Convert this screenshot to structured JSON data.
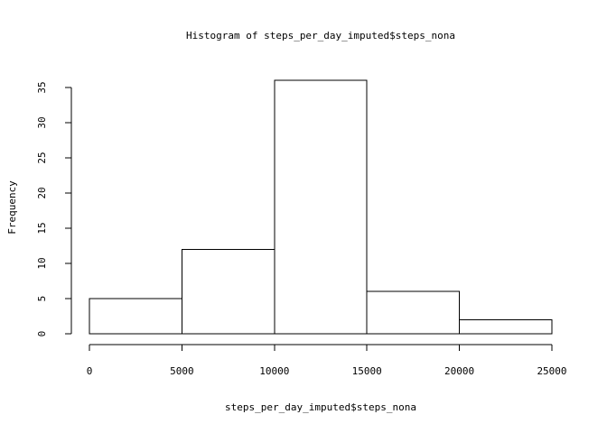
{
  "chart_data": {
    "type": "bar",
    "title": "Histogram of steps_per_day_imputed$steps_nona",
    "xlabel": "steps_per_day_imputed$steps_nona",
    "ylabel": "Frequency",
    "bins": [
      {
        "x0": 0,
        "x1": 5000,
        "count": 5
      },
      {
        "x0": 5000,
        "x1": 10000,
        "count": 12
      },
      {
        "x0": 10000,
        "x1": 15000,
        "count": 36
      },
      {
        "x0": 15000,
        "x1": 20000,
        "count": 6
      },
      {
        "x0": 20000,
        "x1": 25000,
        "count": 2
      }
    ],
    "xlim": [
      0,
      25000
    ],
    "ylim": [
      0,
      35
    ],
    "x_ticks": [
      0,
      5000,
      10000,
      15000,
      20000,
      25000
    ],
    "x_tick_labels": [
      "0",
      "5000",
      "10000",
      "15000",
      "20000",
      "25000"
    ],
    "y_ticks": [
      0,
      5,
      10,
      15,
      20,
      25,
      30,
      35
    ],
    "y_tick_labels": [
      "0",
      "5",
      "10",
      "15",
      "20",
      "25",
      "30",
      "35"
    ],
    "grid": false,
    "bar_fill": "#ffffff",
    "bar_stroke": "#000000"
  }
}
